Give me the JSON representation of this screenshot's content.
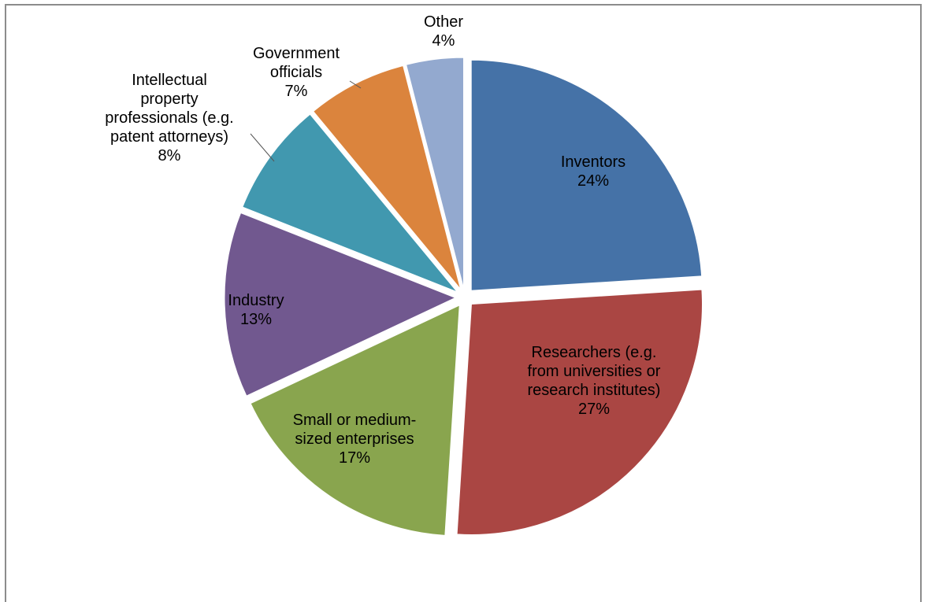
{
  "chart_data": {
    "type": "pie",
    "title": "",
    "slices": [
      {
        "label_lines": [
          "Inventors",
          "24%"
        ],
        "value": 24,
        "color": "#4572A7"
      },
      {
        "label_lines": [
          "Researchers (e.g.",
          "from universities or",
          "research institutes)",
          "27%"
        ],
        "value": 27,
        "color": "#AA4643"
      },
      {
        "label_lines": [
          "Small or medium-",
          "sized enterprises",
          "17%"
        ],
        "value": 17,
        "color": "#89A54E"
      },
      {
        "label_lines": [
          "Industry",
          "13%"
        ],
        "value": 13,
        "color": "#71588F"
      },
      {
        "label_lines": [
          "Intellectual",
          "property",
          "professionals (e.g.",
          "patent attorneys)",
          "8%"
        ],
        "value": 8,
        "color": "#4198AF"
      },
      {
        "label_lines": [
          "Government",
          "officials",
          "7%"
        ],
        "value": 7,
        "color": "#DB843D"
      },
      {
        "label_lines": [
          "Other",
          "4%"
        ],
        "value": 4,
        "color": "#93A9CF"
      }
    ],
    "legend": "none",
    "exploded": true
  }
}
